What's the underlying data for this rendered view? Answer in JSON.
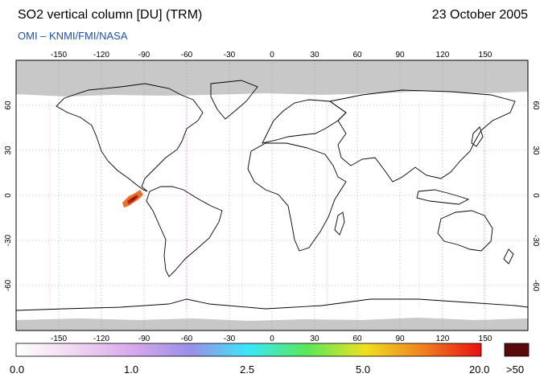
{
  "header": {
    "title": "SO2 vertical column [DU] (TRM)",
    "date": "23 October 2005",
    "credit": "OMI  –  KNMI/FMI/NASA"
  },
  "map": {
    "lon_ticks": [
      "-150",
      "-120",
      "-90",
      "-60",
      "-30",
      "0",
      "30",
      "60",
      "90",
      "120",
      "150"
    ],
    "lat_ticks_left": [
      "60",
      "30",
      "0",
      "-30",
      "-60"
    ],
    "lat_ticks_right": [
      "60",
      "30",
      "0",
      "-30",
      "-60"
    ],
    "no_data_color": "#c8c8c8",
    "coastline_color": "#000000",
    "plume_colors": [
      "#e8702a",
      "#c02010",
      "#8b1a0a"
    ]
  },
  "colorbar": {
    "labels": [
      "0.0",
      "1.0",
      "2.5",
      "5.0",
      "20.0",
      ">50"
    ],
    "stops": [
      "#ffffff",
      "#f0d8f0",
      "#d8a8ec",
      "#9a8fe8",
      "#3ae8f8",
      "#58e858",
      "#f0e020",
      "#f08020",
      "#e81010"
    ],
    "overflow_color": "#5a0a0a"
  }
}
